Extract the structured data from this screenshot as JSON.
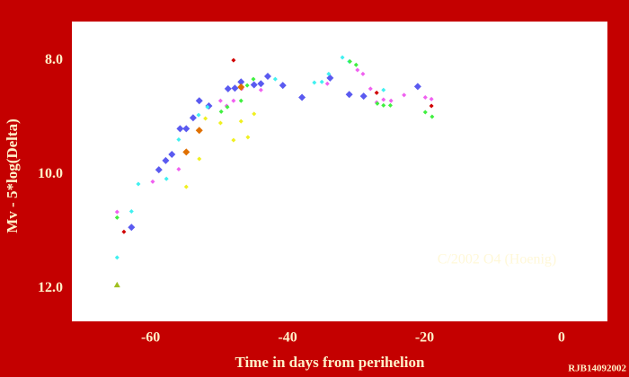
{
  "chart_data": {
    "type": "scatter",
    "x_label": "Time in days from perihelion",
    "y_label": "Mv - 5*log(Delta)",
    "annotations": [
      "C/2002 O4 (Hoenig)",
      "RJB14092002"
    ],
    "xlim": [
      -71.5,
      6.7
    ],
    "xticks": [
      -60,
      -40,
      -20,
      0
    ],
    "ylim": [
      12.58,
      7.32
    ],
    "yticks": [
      {
        "value": 8,
        "label": "8.0"
      },
      {
        "value": 10,
        "label": "10.0"
      },
      {
        "value": 12,
        "label": "12.0"
      }
    ],
    "grid": false,
    "series": [
      {
        "color": "#5a5af0",
        "marker": "diamond",
        "marker_size": 4,
        "x": [
          -62.8,
          -58.8,
          -57.8,
          -56.9,
          -55.7,
          -54.8,
          -53.8,
          -52.9,
          -51.5,
          -48.7,
          -47.7,
          -46.8,
          -44.9,
          -43.9,
          -42.9,
          -40.7,
          -37.9,
          -33.8,
          -31.0,
          -28.9,
          -21.0
        ],
        "values": [
          10.93,
          9.92,
          9.76,
          9.65,
          9.2,
          9.2,
          9.01,
          8.71,
          8.8,
          8.5,
          8.49,
          8.38,
          8.43,
          8.41,
          8.28,
          8.44,
          8.65,
          8.31,
          8.6,
          8.63,
          8.46
        ]
      },
      {
        "color": "#40f0f0",
        "marker": "diamond",
        "marker_size": 2.5,
        "x": [
          -64.9,
          -62.8,
          -61.8,
          -57.7,
          -55.9,
          -53.0,
          -51.7,
          -41.8,
          -36.1,
          -35.0,
          -34.0,
          -32.0,
          -31.0,
          -26.0
        ],
        "values": [
          11.46,
          10.65,
          10.17,
          10.08,
          9.39,
          8.96,
          8.82,
          8.33,
          8.39,
          8.38,
          8.24,
          7.95,
          8.02,
          8.52
        ]
      },
      {
        "color": "#f060f0",
        "marker": "diamond",
        "marker_size": 2.5,
        "x": [
          -64.9,
          -59.7,
          -55.9,
          -49.8,
          -48.9,
          -47.9,
          -46.7,
          -43.9,
          -34.2,
          -29.8,
          -29.0,
          -27.9,
          -27.0,
          -26.0,
          -24.9,
          -23.0,
          -19.9,
          -19.0
        ],
        "values": [
          10.66,
          10.13,
          9.91,
          8.71,
          8.8,
          8.71,
          8.5,
          8.52,
          8.41,
          8.17,
          8.24,
          8.5,
          8.74,
          8.69,
          8.71,
          8.61,
          8.65,
          8.68
        ]
      },
      {
        "color": "#40f040",
        "marker": "diamond",
        "marker_size": 2.5,
        "x": [
          -64.9,
          -49.7,
          -48.8,
          -46.8,
          -45.9,
          -45.0,
          -30.9,
          -30.0,
          -26.9,
          -26.0,
          -25.0,
          -19.9,
          -18.9
        ],
        "values": [
          10.76,
          8.9,
          8.82,
          8.71,
          8.44,
          8.33,
          8.02,
          8.08,
          8.76,
          8.79,
          8.79,
          8.91,
          8.99
        ]
      },
      {
        "color": "#f0f020",
        "marker": "diamond",
        "marker_size": 2.5,
        "x": [
          -54.8,
          -52.9,
          -52.0,
          -49.8,
          -47.9,
          -46.8,
          -45.8,
          -44.9
        ],
        "values": [
          10.22,
          9.73,
          9.02,
          9.1,
          9.4,
          9.07,
          9.35,
          8.94
        ]
      },
      {
        "color": "#d00000",
        "marker": "diamond",
        "marker_size": 2.5,
        "x": [
          -63.9,
          -47.9,
          -27.0,
          -19.0
        ],
        "values": [
          11.01,
          8.0,
          8.57,
          8.8
        ]
      },
      {
        "color": "#e07000",
        "marker": "diamond",
        "marker_size": 4,
        "x": [
          -54.8,
          -52.9,
          -46.8
        ],
        "values": [
          9.61,
          9.23,
          8.47
        ]
      },
      {
        "color": "#a0c020",
        "marker": "triangle",
        "marker_size": 3.5,
        "x": [
          -64.9
        ],
        "values": [
          11.94
        ]
      }
    ]
  }
}
